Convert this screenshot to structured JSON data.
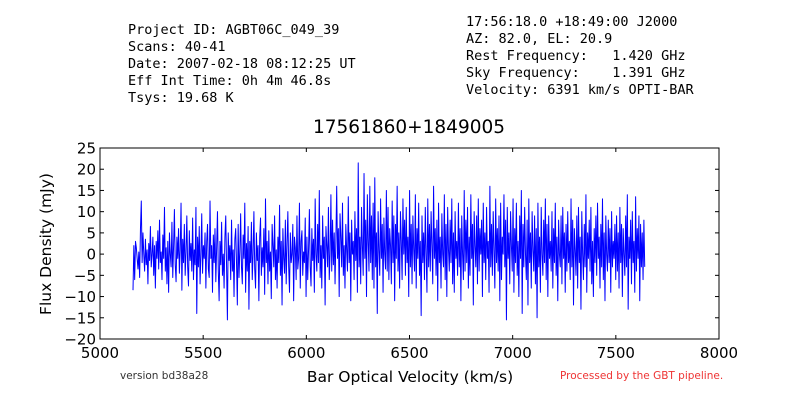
{
  "header_left": [
    "Project ID: AGBT06C_049_39",
    "Scans: 40-41",
    "Date: 2007-02-18 08:12:25 UT",
    "Eff Int Time: 0h 4m 46.8s",
    "Tsys: 19.68 K"
  ],
  "header_right": [
    "17:56:18.0 +18:49:00 J2000",
    "AZ: 82.0, EL: 20.9",
    "Rest Frequency:   1.420 GHz",
    "Sky Frequency:    1.391 GHz",
    "Velocity: 6391 km/s OPTI-BAR"
  ],
  "footer": {
    "version": "version bd38a28",
    "processed": "Processed by the GBT pipeline."
  },
  "colors": {
    "series": "#0000ff",
    "processed": "#ee3333"
  },
  "chart_data": {
    "type": "line",
    "title": "17561860+1849005",
    "xlabel": "Bar Optical Velocity (km/s)",
    "ylabel": "Flux Density (mJy)",
    "xlim": [
      5000,
      8000
    ],
    "ylim": [
      -20,
      25
    ],
    "xticks": [
      5000,
      5500,
      6000,
      6500,
      7000,
      7500,
      8000
    ],
    "yticks": [
      -20,
      -15,
      -10,
      -5,
      0,
      5,
      10,
      15,
      20,
      25
    ],
    "grid": false,
    "legend": "none",
    "series": [
      {
        "x_start": 5160,
        "x_end": 7640,
        "values": [
          -8.5,
          2,
          -6,
          3,
          1.5,
          -1,
          -3.5,
          0.5,
          -5.5,
          6,
          12.5,
          -2,
          5,
          0,
          -4,
          3.5,
          -2.5,
          1,
          -7,
          2.5,
          -1.5,
          6.5,
          -3,
          0,
          4,
          -5,
          2,
          -8,
          3,
          -1,
          5.5,
          -3.5,
          8,
          -2,
          0.5,
          -6,
          4.5,
          -1,
          11,
          -4,
          1.5,
          -7,
          3,
          -9,
          5,
          0,
          -3,
          7.5,
          -5.5,
          2,
          10.5,
          -2.5,
          -6.5,
          4,
          -1,
          6,
          -4.5,
          1,
          12,
          -8.5,
          3.5,
          -2,
          7,
          -5,
          0.5,
          9,
          -3,
          -7.5,
          5.5,
          -1.5,
          2.5,
          -4,
          8.5,
          -6,
          1,
          -2.5,
          11,
          -14,
          4,
          -3,
          6.5,
          -7,
          0,
          9.5,
          -4.5,
          2,
          -1,
          5,
          -8,
          3,
          7,
          -3.5,
          -5.5,
          12.5,
          -1,
          2,
          -9,
          4.5,
          -2,
          6,
          -6.5,
          1.5,
          10,
          -4,
          -11,
          3,
          -2.5,
          7.5,
          -5,
          0,
          -8,
          4,
          9,
          -3,
          -15.5,
          5,
          -1.5,
          2,
          -6,
          8,
          -4,
          1,
          -10,
          3.5,
          6,
          -2,
          -12,
          7,
          -5.5,
          0.5,
          9.5,
          -3,
          -7,
          4.5,
          -1,
          12,
          -9,
          2.5,
          -4,
          6.5,
          -13,
          3,
          -2,
          7.5,
          -6,
          0,
          10,
          -3.5,
          -8,
          5,
          -1.5,
          2,
          -11,
          4,
          8.5,
          -5,
          1.5,
          -3,
          6,
          -9.5,
          13,
          -2,
          3,
          -7,
          5.5,
          -4,
          0.5,
          -10.5,
          7,
          2,
          -3,
          9,
          -6,
          1,
          -8,
          4,
          -2,
          11.5,
          -5,
          3,
          -12,
          6,
          -1,
          -4.5,
          8,
          -7,
          2.5,
          10,
          -3,
          -9,
          5,
          -2,
          0,
          7,
          -11,
          4,
          1.5,
          -6,
          9,
          -3.5,
          -1,
          12,
          -8,
          3,
          5.5,
          -5,
          0.5,
          -2,
          8.5,
          -10,
          4,
          -6,
          1,
          10.5,
          -3,
          -7.5,
          6,
          -1.5,
          3.5,
          -9,
          13,
          0,
          -4,
          7,
          -2,
          15,
          -5.5,
          2,
          -8,
          9,
          -1,
          4,
          -12,
          6.5,
          2,
          -3,
          11,
          -6,
          0,
          14,
          -4,
          8,
          -2.5,
          5,
          -7,
          3,
          16,
          -1,
          6,
          -10,
          9.5,
          4,
          -3,
          12,
          -5,
          2,
          -8,
          7,
          1,
          -4,
          13.5,
          -2,
          5,
          -11,
          8,
          0,
          3,
          -6,
          10,
          -1.5,
          6,
          -9,
          21.5,
          -3,
          4,
          -7,
          11,
          2,
          -5,
          19,
          -1,
          8,
          -10,
          14,
          3,
          -4,
          16,
          -2,
          9,
          -6,
          12,
          -8,
          18,
          -3,
          5,
          -14,
          10,
          1,
          -5,
          13,
          -1,
          7,
          -9,
          8.5,
          0,
          -3.5,
          15,
          -4,
          11,
          -6,
          6,
          2,
          -7,
          12.5,
          -2,
          9,
          -11,
          7,
          -1,
          16,
          -4,
          5,
          -8,
          10,
          3,
          -6,
          13,
          0,
          8,
          -5,
          11,
          -2,
          4,
          -10,
          15,
          -3,
          7,
          -7,
          9,
          1,
          -4,
          14,
          -8,
          6,
          -1,
          12,
          -5,
          3,
          -14.5,
          9,
          -2,
          5,
          -6,
          11,
          0,
          -9,
          13,
          -3,
          7,
          -4,
          10,
          2,
          -7,
          16,
          -1,
          6,
          -5,
          8,
          -11,
          12,
          -2,
          4,
          -8,
          9.5,
          0,
          -3,
          14,
          -6,
          7,
          -10,
          11,
          1,
          -4,
          8,
          -2,
          13,
          -7,
          5,
          -9,
          10,
          -1,
          3,
          -5,
          12,
          -3,
          6,
          -11,
          9,
          0,
          -6,
          15,
          -4,
          8,
          -2,
          11,
          -8,
          4,
          -5,
          14,
          -1,
          7,
          -12,
          10,
          2,
          -3,
          9,
          -7,
          13,
          -4,
          6,
          0,
          8,
          -10,
          12,
          -2,
          5,
          -6,
          11,
          -1,
          3,
          -9,
          16,
          -3,
          7,
          -5,
          10,
          1,
          -8,
          13,
          -2,
          6,
          -4,
          9,
          -11,
          12,
          -6,
          4,
          0,
          14,
          -3,
          8,
          -15.5,
          11,
          -1,
          5,
          -7,
          10,
          2,
          -4,
          13,
          -9,
          6,
          -2,
          12,
          -5,
          3,
          -10,
          9,
          -1,
          15,
          -14,
          7,
          -3,
          11,
          0,
          -6,
          8,
          -12,
          13,
          -2,
          5,
          -8,
          10,
          1,
          -4,
          9,
          -7,
          6,
          -15,
          12,
          -3,
          4,
          -9,
          11,
          0,
          -5,
          8,
          -2,
          13,
          -6,
          7,
          -10,
          9,
          -1,
          3,
          -4,
          10,
          -8,
          6,
          -2,
          12,
          -5,
          4,
          -11,
          8,
          0,
          -3,
          9,
          -7,
          11,
          -1,
          5,
          -9,
          7,
          -4,
          10,
          -2,
          3,
          -6,
          13,
          -3,
          8,
          -12,
          6,
          1,
          -5,
          9,
          -8,
          11,
          -2,
          4,
          -13,
          10,
          0,
          -6,
          7,
          -3,
          14,
          -9,
          5,
          -1,
          8,
          -4,
          11,
          -7,
          3,
          -10,
          6,
          -2,
          9,
          -5,
          12,
          -1,
          4,
          -8,
          7,
          -3,
          13,
          -6,
          5,
          -11,
          9,
          0,
          -4,
          8,
          -2,
          6,
          -9,
          10,
          -3,
          3,
          -1,
          7,
          -6,
          9,
          -4,
          5,
          -8,
          11,
          -2,
          7,
          -10,
          6,
          0,
          -5,
          9,
          -3,
          14,
          -13,
          4,
          -1,
          8,
          -7,
          10,
          -2,
          3,
          -9,
          13.5,
          -4,
          6,
          -1,
          9,
          -11,
          7,
          -3,
          5,
          -6,
          8,
          -3
        ]
      }
    ]
  }
}
